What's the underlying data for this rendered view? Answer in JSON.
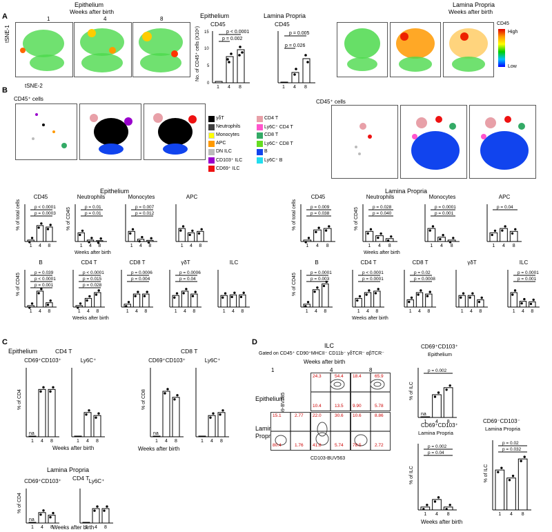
{
  "panelA": {
    "letter": "A",
    "epithelium_title": "Epithelium",
    "weeks_title": "Weeks after birth",
    "lp_title": "Lamina Propria",
    "lp_weeks_title": "Weeks after birth",
    "weeks": [
      "1",
      "4",
      "8"
    ],
    "tsne1": "tSNE-1",
    "tsne2": "tSNE-2",
    "colorbar_title": "CD45",
    "colorbar_high": "High",
    "colorbar_low": "Low",
    "bar_epi_tissue": "Epithelium",
    "bar_epi_marker": "CD45",
    "bar_lp_tissue": "Lamina Propria",
    "bar_lp_marker": "CD45",
    "ylabel": "No. of CD45⁺ cells (X10⁶)",
    "epi_p": [
      "p = 0.002",
      "p < 0.0001"
    ],
    "lp_p": [
      "p = 0.026",
      "p = 0.005"
    ],
    "axis_ticks_epi": [
      "0",
      "5",
      "10",
      "15"
    ],
    "axis_ticks_lp": [
      "0",
      "5",
      "10",
      "15"
    ],
    "tsne_ticks": [
      "0",
      "50",
      "100"
    ]
  },
  "panelB": {
    "letter": "B",
    "cd45_cells": "CD45⁺ cells",
    "cd45_cells_lp": "CD45⁺ cells",
    "legend": [
      {
        "label": "γδT",
        "color": "#000000"
      },
      {
        "label": "Neutrophils",
        "color": "#404040"
      },
      {
        "label": "Monocytes",
        "color": "#ffff00"
      },
      {
        "label": "APC",
        "color": "#ff9900"
      },
      {
        "label": "DN ILC",
        "color": "#bbbbbb"
      },
      {
        "label": "CD103⁺ ILC",
        "color": "#9900cc"
      },
      {
        "label": "CD69⁺ ILC",
        "color": "#ee1111"
      },
      {
        "label": "CD4 T",
        "color": "#e8a0a8"
      },
      {
        "label": "Ly6C⁺ CD4 T",
        "color": "#ff55cc"
      },
      {
        "label": "CD8 T",
        "color": "#33aa66"
      },
      {
        "label": "Ly6C⁺ CD8 T",
        "color": "#66dd22"
      },
      {
        "label": "B",
        "color": "#1144ee"
      },
      {
        "label": "Ly6C⁺ B",
        "color": "#22ddee"
      }
    ],
    "epithelium": "Epithelium",
    "lamina_propria": "Lamina Propria",
    "weeks_after_birth": "Weeks after birth",
    "pct_total": "% of total cells",
    "pct_cd45": "% of CD45",
    "epi_row1": [
      {
        "title": "CD45",
        "p": [
          "p < 0.0001",
          "p = 0.0003"
        ]
      },
      {
        "title": "Neutrophils",
        "p": [
          "p = 0.01",
          "p = 0.01"
        ]
      },
      {
        "title": "Monocytes",
        "p": [
          "p = 0.007",
          "p = 0.012"
        ]
      },
      {
        "title": "APC",
        "p": []
      }
    ],
    "lp_row1": [
      {
        "title": "CD45",
        "p": [
          "p = 0.009",
          "p = 0.038"
        ]
      },
      {
        "title": "Neutrophils",
        "p": [
          "p = 0.028",
          "p = 0.040"
        ]
      },
      {
        "title": "Monocytes",
        "p": [
          "p = 0.0001",
          "p = 0.001"
        ]
      },
      {
        "title": "APC",
        "p": [
          "p = 0.04"
        ]
      }
    ],
    "epi_row2": [
      {
        "title": "B",
        "p": [
          "p = 0.039",
          "p < 0.0001",
          "p = 0.001"
        ]
      },
      {
        "title": "CD4 T",
        "p": [
          "p < 0.0001",
          "p = 0.015",
          "p = 0.028"
        ]
      },
      {
        "title": "CD8 T",
        "p": [
          "p = 0.0006",
          "p = 0.004"
        ]
      },
      {
        "title": "γδT",
        "p": [
          "p = 0.0006",
          "p = 0.04"
        ]
      },
      {
        "title": "ILC",
        "p": []
      }
    ],
    "lp_row2": [
      {
        "title": "B",
        "p": [
          "p = 0.0001",
          "p = 0.003"
        ]
      },
      {
        "title": "CD4 T",
        "p": [
          "p < 0.0001",
          "p = 0.0001"
        ]
      },
      {
        "title": "CD8 T",
        "p": [
          "p = 0.02",
          "p = 0.0008"
        ]
      },
      {
        "title": "γδT",
        "p": []
      },
      {
        "title": "ILC",
        "p": [
          "p = 0.0001",
          "p = 0.001"
        ]
      }
    ]
  },
  "panelC": {
    "letter": "C",
    "epithelium": "Epithelium",
    "cd4t": "CD4 T",
    "cd8t": "CD8 T",
    "cd69cd103": "CD69⁺CD103⁺",
    "ly6c": "Ly6C⁺",
    "pct_cd4": "% of CD4",
    "pct_cd8": "% of CD8",
    "na": "na",
    "weeks_after_birth": "Weeks after birth",
    "lamina_propria": "Lamina Propria"
  },
  "panelD": {
    "letter": "D",
    "ilc": "ILC",
    "gated": "Gated on CD45⁺ CD90⁺MHCII⁻ CD11b⁻ γδTCR⁻ αβTCR⁻",
    "weeks_after_birth": "Weeks after birth",
    "epithelium": "Epithelium",
    "lamina": "Lamina",
    "propria": "Propria",
    "yaxis": "CD69-BV785",
    "xaxis": "CD103-BUV563",
    "epi_quadrants": [
      [
        "24.3",
        "54.4",
        "10.4",
        "13.5"
      ],
      [
        "18.4",
        "65.9",
        "9.90",
        "5.78"
      ]
    ],
    "lp_quadrants": [
      [
        "15.1",
        "2.77",
        "80.4",
        "1.76"
      ],
      [
        "22.0",
        "30.6",
        "41.8",
        "5.74"
      ],
      [
        "10.6",
        "8.86",
        "78.5",
        "2.72"
      ]
    ],
    "bar1_title": "CD69⁺CD103⁺",
    "bar1_sub": "Epithelium",
    "bar1_p": "p = 0.002",
    "bar2_title": "CD69⁺CD103⁺",
    "bar2_sub": "Lamina Propria",
    "bar2_p": [
      "p = 0.002",
      "p = 0.04"
    ],
    "bar3_title": "CD69⁻CD103⁻",
    "bar3_sub": "Lamina Propria",
    "bar3_p": [
      "p = 0.02",
      "p = 0.032"
    ],
    "pct_ilc": "% of ILC",
    "na": "na"
  },
  "chart_data": [
    {
      "type": "bar",
      "title": "CD45",
      "subtitle": "Epithelium",
      "categories": [
        "1",
        "4",
        "8"
      ],
      "values": [
        0.5,
        7,
        9
      ],
      "ylim": [
        0,
        15
      ]
    },
    {
      "type": "bar",
      "title": "CD45",
      "subtitle": "Lamina Propria",
      "categories": [
        "1",
        "4",
        "8"
      ],
      "values": [
        0.3,
        3,
        7
      ],
      "ylim": [
        0,
        15
      ]
    },
    {
      "type": "bar",
      "title": "CD69⁺CD103⁺ Epithelium",
      "categories": [
        "1",
        "4",
        "8"
      ],
      "values": [
        0,
        55,
        72
      ],
      "ylim": [
        0,
        100
      ]
    },
    {
      "type": "bar",
      "title": "CD69⁺CD103⁺ Lamina Propria",
      "categories": [
        "1",
        "4",
        "8"
      ],
      "values": [
        5,
        18,
        5
      ],
      "ylim": [
        0,
        100
      ]
    },
    {
      "type": "bar",
      "title": "CD69⁻CD103⁻ Lamina Propria",
      "categories": [
        "1",
        "4",
        "8"
      ],
      "values": [
        65,
        52,
        83
      ],
      "ylim": [
        0,
        100
      ]
    }
  ]
}
